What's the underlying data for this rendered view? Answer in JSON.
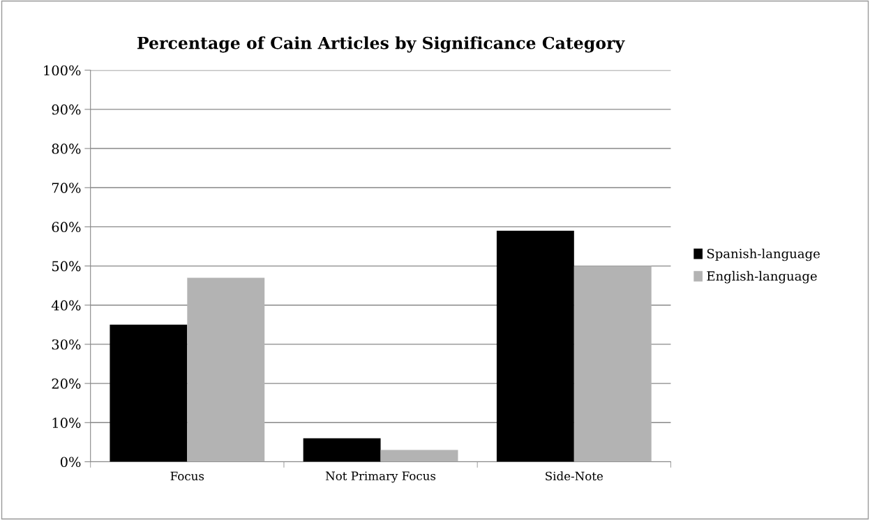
{
  "chart_data": {
    "type": "bar",
    "title": "Percentage of Cain Articles by Significance Category",
    "categories": [
      "Focus",
      "Not Primary Focus",
      "Side-Note"
    ],
    "series": [
      {
        "name": "Spanish-language",
        "color": "#000000",
        "values": [
          35,
          6,
          59
        ]
      },
      {
        "name": "English-language",
        "color": "#b3b3b3",
        "values": [
          47,
          3,
          50
        ]
      }
    ],
    "ylim": [
      0,
      100
    ],
    "yticks": [
      {
        "value": 0,
        "label": "0%"
      },
      {
        "value": 10,
        "label": "10%"
      },
      {
        "value": 20,
        "label": "20%"
      },
      {
        "value": 30,
        "label": "30%"
      },
      {
        "value": 40,
        "label": "40%"
      },
      {
        "value": 50,
        "label": "50%"
      },
      {
        "value": 60,
        "label": "60%"
      },
      {
        "value": 70,
        "label": "70%"
      },
      {
        "value": 80,
        "label": "80%"
      },
      {
        "value": 90,
        "label": "90%"
      },
      {
        "value": 100,
        "label": "100%"
      }
    ],
    "grid": "y",
    "legend": "right"
  }
}
